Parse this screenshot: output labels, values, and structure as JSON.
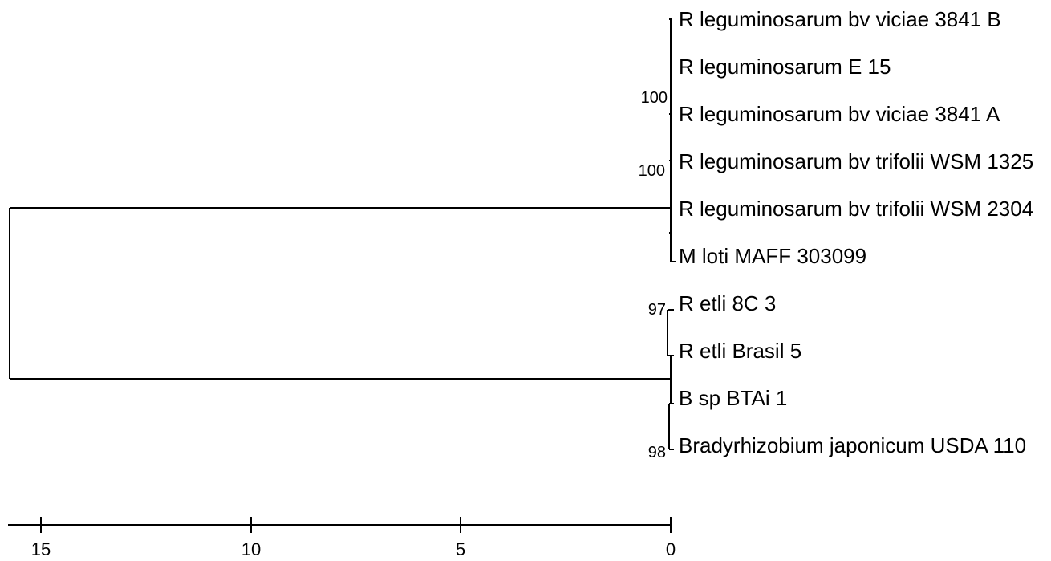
{
  "tree": {
    "leaves": [
      {
        "label": "R leguminosarum bv viciae 3841 B"
      },
      {
        "label": "R leguminosarum E 15"
      },
      {
        "label": "R leguminosarum bv viciae 3841 A"
      },
      {
        "label": "R leguminosarum bv trifolii WSM 1325"
      },
      {
        "label": "R leguminosarum bv trifolii WSM 2304"
      },
      {
        "label": "M loti MAFF 303099"
      },
      {
        "label": "R etli 8C 3"
      },
      {
        "label": "R etli Brasil 5"
      },
      {
        "label": "B sp BTAi 1"
      },
      {
        "label": "Bradyrhizobium japonicum USDA 110"
      }
    ],
    "bootstrap": [
      {
        "value": "100"
      },
      {
        "value": "100"
      },
      {
        "value": "97"
      },
      {
        "value": "98"
      }
    ],
    "root_height": 15.8,
    "line_color": "#000000"
  },
  "scale": {
    "ticks": [
      "15",
      "10",
      "5",
      "0"
    ],
    "tick_values": [
      15,
      10,
      5,
      0
    ]
  }
}
